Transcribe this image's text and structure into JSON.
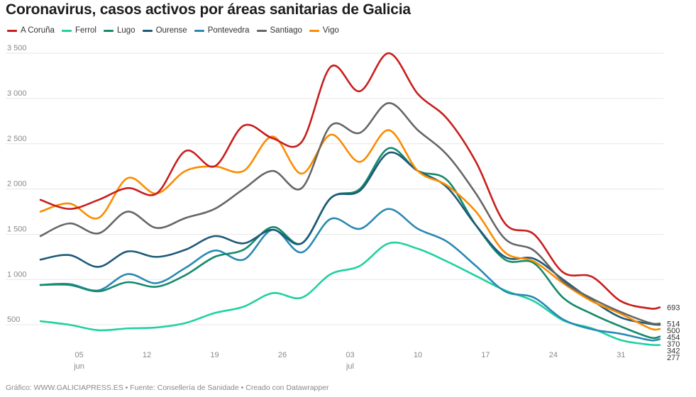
{
  "chart_data": {
    "type": "line",
    "title": "Coronavirus, casos activos por áreas sanitarias de Galicia",
    "xlabel": "",
    "ylabel": "",
    "ylim": [
      0,
      3600
    ],
    "y_ticks": [
      500,
      1000,
      1500,
      2000,
      2500,
      3000,
      3500
    ],
    "y_tick_labels": [
      "500",
      "1 000",
      "1 500",
      "2 000",
      "2 500",
      "3 000",
      "3 500"
    ],
    "x_ticks": [
      {
        "date": "06-05",
        "label": "05",
        "month": "jun"
      },
      {
        "date": "06-12",
        "label": "12",
        "month": ""
      },
      {
        "date": "06-19",
        "label": "19",
        "month": ""
      },
      {
        "date": "06-26",
        "label": "26",
        "month": ""
      },
      {
        "date": "07-03",
        "label": "03",
        "month": "jul"
      },
      {
        "date": "07-10",
        "label": "10",
        "month": ""
      },
      {
        "date": "07-17",
        "label": "17",
        "month": ""
      },
      {
        "date": "07-24",
        "label": "24",
        "month": ""
      },
      {
        "date": "07-31",
        "label": "31",
        "month": ""
      }
    ],
    "grid": "horizontal",
    "legend": "top",
    "x": [
      "06-01",
      "06-04",
      "06-07",
      "06-10",
      "06-13",
      "06-16",
      "06-19",
      "06-22",
      "06-25",
      "06-28",
      "07-01",
      "07-04",
      "07-07",
      "07-10",
      "07-13",
      "07-16",
      "07-19",
      "07-22",
      "07-25",
      "07-28",
      "07-31",
      "08-03",
      "08-04"
    ],
    "series": [
      {
        "name": "A Coruña",
        "color": "#c71e1d",
        "end_label": "693",
        "values": [
          1880,
          1780,
          1880,
          2010,
          1950,
          2420,
          2250,
          2700,
          2560,
          2520,
          3350,
          3080,
          3500,
          3050,
          2780,
          2300,
          1620,
          1500,
          1080,
          1030,
          760,
          680,
          693
        ]
      },
      {
        "name": "Ferrol",
        "color": "#1fd1a0",
        "end_label": "277",
        "values": [
          540,
          500,
          440,
          460,
          470,
          520,
          630,
          700,
          850,
          800,
          1060,
          1150,
          1400,
          1340,
          1200,
          1040,
          880,
          760,
          550,
          460,
          330,
          280,
          277
        ]
      },
      {
        "name": "Lugo",
        "color": "#15896c",
        "end_label": "370",
        "values": [
          940,
          940,
          870,
          970,
          920,
          1050,
          1250,
          1330,
          1580,
          1400,
          1900,
          2000,
          2450,
          2200,
          2100,
          1600,
          1220,
          1180,
          800,
          620,
          480,
          360,
          370
        ]
      },
      {
        "name": "Ourense",
        "color": "#1d5a79",
        "end_label": "500",
        "values": [
          1220,
          1270,
          1140,
          1310,
          1250,
          1330,
          1480,
          1400,
          1550,
          1400,
          1900,
          1980,
          2400,
          2200,
          2020,
          1600,
          1250,
          1230,
          1000,
          770,
          580,
          510,
          500
        ]
      },
      {
        "name": "Pontevedra",
        "color": "#2a88b3",
        "end_label": "342",
        "values": [
          940,
          950,
          880,
          1060,
          960,
          1130,
          1320,
          1220,
          1550,
          1300,
          1670,
          1560,
          1780,
          1560,
          1420,
          1150,
          870,
          800,
          560,
          450,
          400,
          330,
          342
        ]
      },
      {
        "name": "Santiago",
        "color": "#666666",
        "end_label": "514",
        "values": [
          1480,
          1620,
          1510,
          1750,
          1570,
          1680,
          1780,
          2000,
          2200,
          2010,
          2700,
          2620,
          2950,
          2650,
          2380,
          1950,
          1450,
          1320,
          980,
          790,
          640,
          520,
          514
        ]
      },
      {
        "name": "Vigo",
        "color": "#fa8c00",
        "end_label": "454",
        "values": [
          1750,
          1840,
          1680,
          2120,
          1950,
          2200,
          2250,
          2200,
          2580,
          2170,
          2600,
          2300,
          2650,
          2200,
          2040,
          1750,
          1300,
          1200,
          960,
          760,
          620,
          460,
          454
        ]
      }
    ]
  },
  "footer": "Gráfico: WWW.GALICIAPRESS.ES • Fuente: Consellería de Sanidade • Creado con Datawrapper"
}
